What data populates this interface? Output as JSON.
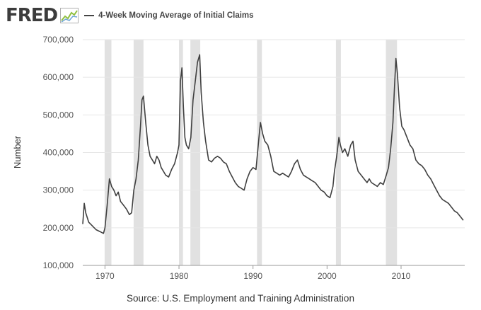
{
  "brand": {
    "logo_text": "FRED",
    "logo_icon": "fred-line-chart-icon"
  },
  "colors": {
    "line": "#404040",
    "recession": "#e1e1e1",
    "grid": "#e6e6e6",
    "axis": "#999999",
    "logo_green": "#8fbf3f",
    "logo_blue": "#6ea5d6"
  },
  "footer": {
    "source": "Source: U.S. Employment and Training Administration"
  },
  "chart_data": {
    "type": "line",
    "title": "",
    "xlabel": "",
    "ylabel": "Number",
    "xlim": [
      1967.0,
      2018.6
    ],
    "ylim": [
      100000,
      700000
    ],
    "grid": true,
    "legend_position": "top-left",
    "x_ticks": [
      1970,
      1980,
      1990,
      2000,
      2010
    ],
    "y_ticks": [
      100000,
      200000,
      300000,
      400000,
      500000,
      600000,
      700000
    ],
    "y_tick_labels": [
      "100,000",
      "200,000",
      "300,000",
      "400,000",
      "500,000",
      "600,000",
      "700,000"
    ],
    "recessions": [
      [
        1969.95,
        1970.87
      ],
      [
        1973.87,
        1975.2
      ],
      [
        1980.0,
        1980.54
      ],
      [
        1981.54,
        1982.87
      ],
      [
        1990.54,
        1991.2
      ],
      [
        2001.2,
        2001.87
      ],
      [
        2007.95,
        2009.45
      ]
    ],
    "series": [
      {
        "name": "4-Week Moving Average of Initial Claims",
        "x": [
          1967.0,
          1967.2,
          1967.4,
          1967.8,
          1968.3,
          1968.8,
          1969.3,
          1969.8,
          1970.0,
          1970.3,
          1970.6,
          1970.9,
          1971.2,
          1971.5,
          1971.8,
          1972.1,
          1972.5,
          1972.9,
          1973.3,
          1973.6,
          1973.9,
          1974.2,
          1974.5,
          1974.8,
          1975.0,
          1975.2,
          1975.5,
          1975.8,
          1976.1,
          1976.4,
          1976.7,
          1977.0,
          1977.3,
          1977.6,
          1977.9,
          1978.2,
          1978.6,
          1979.0,
          1979.4,
          1979.8,
          1980.0,
          1980.2,
          1980.4,
          1980.6,
          1980.8,
          1981.0,
          1981.3,
          1981.6,
          1981.9,
          1982.2,
          1982.5,
          1982.8,
          1983.0,
          1983.3,
          1983.6,
          1984.0,
          1984.4,
          1984.8,
          1985.2,
          1985.6,
          1986.0,
          1986.4,
          1986.8,
          1987.2,
          1987.6,
          1988.0,
          1988.4,
          1988.8,
          1989.2,
          1989.6,
          1990.0,
          1990.4,
          1990.8,
          1991.0,
          1991.3,
          1991.6,
          1992.0,
          1992.4,
          1992.8,
          1993.2,
          1993.6,
          1994.0,
          1994.4,
          1994.8,
          1995.2,
          1995.6,
          1996.0,
          1996.4,
          1996.8,
          1997.2,
          1997.6,
          1998.0,
          1998.4,
          1998.8,
          1999.2,
          1999.6,
          2000.0,
          2000.4,
          2000.8,
          2001.0,
          2001.3,
          2001.6,
          2001.8,
          2002.1,
          2002.4,
          2002.8,
          2003.2,
          2003.5,
          2003.8,
          2004.2,
          2004.6,
          2005.0,
          2005.4,
          2005.7,
          2006.0,
          2006.4,
          2006.8,
          2007.2,
          2007.6,
          2008.0,
          2008.3,
          2008.6,
          2008.9,
          2009.1,
          2009.3,
          2009.5,
          2009.8,
          2010.1,
          2010.4,
          2010.8,
          2011.2,
          2011.6,
          2012.0,
          2012.4,
          2012.8,
          2013.2,
          2013.6,
          2014.0,
          2014.4,
          2014.8,
          2015.2,
          2015.6,
          2016.0,
          2016.4,
          2016.8,
          2017.2,
          2017.6,
          2017.8,
          2018.0,
          2018.2,
          2018.4
        ],
        "y": [
          210000,
          265000,
          240000,
          215000,
          205000,
          195000,
          190000,
          185000,
          200000,
          260000,
          330000,
          310000,
          300000,
          285000,
          295000,
          270000,
          260000,
          250000,
          235000,
          240000,
          300000,
          330000,
          380000,
          470000,
          540000,
          550000,
          480000,
          420000,
          390000,
          380000,
          370000,
          390000,
          380000,
          360000,
          350000,
          340000,
          335000,
          355000,
          370000,
          400000,
          420000,
          590000,
          625000,
          520000,
          440000,
          420000,
          410000,
          440000,
          540000,
          590000,
          640000,
          660000,
          560000,
          480000,
          430000,
          380000,
          375000,
          385000,
          390000,
          385000,
          375000,
          370000,
          350000,
          335000,
          320000,
          310000,
          305000,
          300000,
          330000,
          350000,
          360000,
          355000,
          440000,
          480000,
          450000,
          430000,
          420000,
          390000,
          350000,
          345000,
          340000,
          345000,
          340000,
          335000,
          350000,
          370000,
          380000,
          355000,
          340000,
          335000,
          330000,
          325000,
          320000,
          310000,
          300000,
          295000,
          285000,
          280000,
          310000,
          350000,
          390000,
          440000,
          420000,
          400000,
          410000,
          390000,
          420000,
          430000,
          380000,
          350000,
          340000,
          330000,
          320000,
          330000,
          320000,
          315000,
          310000,
          320000,
          315000,
          340000,
          360000,
          410000,
          480000,
          570000,
          650000,
          610000,
          520000,
          470000,
          460000,
          440000,
          420000,
          410000,
          380000,
          370000,
          365000,
          355000,
          340000,
          330000,
          315000,
          300000,
          285000,
          275000,
          270000,
          265000,
          255000,
          245000,
          240000,
          235000,
          230000,
          225000,
          220000
        ]
      }
    ]
  }
}
